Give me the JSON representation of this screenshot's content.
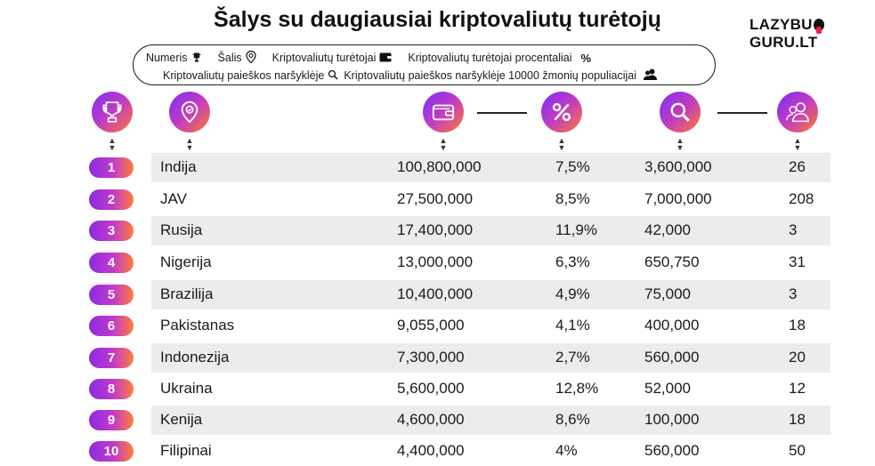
{
  "title": "Šalys su daugiausiai kriptovaliutų turėtojų",
  "logo": {
    "part1": "LAZYBU",
    "part2": "GURU.LT"
  },
  "legend": {
    "numeris": "Numeris",
    "salis": "Šalis",
    "turetojai": "Kriptovaliutų turėtojai",
    "procentaliai": "Kriptovaliutų turėtojai procentaliai",
    "paieskos": "Kriptovaliutų paieškos naršyklėje",
    "paieskos_pop": "Kriptovaliutų paieškos naršyklėje 10000 žmonių populiacijai",
    "pct_symbol": "%"
  },
  "header_icons": [
    "trophy-icon",
    "location-pin-icon",
    "wallet-icon",
    "percent-icon",
    "search-icon",
    "people-icon"
  ],
  "colors": {
    "gradient_start": "#7b2ff7",
    "gradient_mid": "#c13cc2",
    "gradient_end": "#ff7a2f",
    "row_alt": "#ececec"
  },
  "rows": [
    {
      "rank": "1",
      "country": "Indija",
      "holders": "100,800,000",
      "percent": "7,5%",
      "searches": "3,600,000",
      "per10k": "26"
    },
    {
      "rank": "2",
      "country": "JAV",
      "holders": "27,500,000",
      "percent": "8,5%",
      "searches": "7,000,000",
      "per10k": "208"
    },
    {
      "rank": "3",
      "country": "Rusija",
      "holders": "17,400,000",
      "percent": "11,9%",
      "searches": "42,000",
      "per10k": "3"
    },
    {
      "rank": "4",
      "country": "Nigerija",
      "holders": "13,000,000",
      "percent": "6,3%",
      "searches": "650,750",
      "per10k": "31"
    },
    {
      "rank": "5",
      "country": "Brazilija",
      "holders": "10,400,000",
      "percent": "4,9%",
      "searches": "75,000",
      "per10k": "3"
    },
    {
      "rank": "6",
      "country": "Pakistanas",
      "holders": "9,055,000",
      "percent": "4,1%",
      "searches": "400,000",
      "per10k": "18"
    },
    {
      "rank": "7",
      "country": "Indonezija",
      "holders": "7,300,000",
      "percent": "2,7%",
      "searches": "560,000",
      "per10k": "20"
    },
    {
      "rank": "8",
      "country": "Ukraina",
      "holders": "5,600,000",
      "percent": "12,8%",
      "searches": "52,000",
      "per10k": "12"
    },
    {
      "rank": "9",
      "country": "Kenija",
      "holders": "4,600,000",
      "percent": "8,6%",
      "searches": "100,000",
      "per10k": "18"
    },
    {
      "rank": "10",
      "country": "Filipinai",
      "holders": "4,400,000",
      "percent": "4%",
      "searches": "560,000",
      "per10k": "50"
    }
  ]
}
